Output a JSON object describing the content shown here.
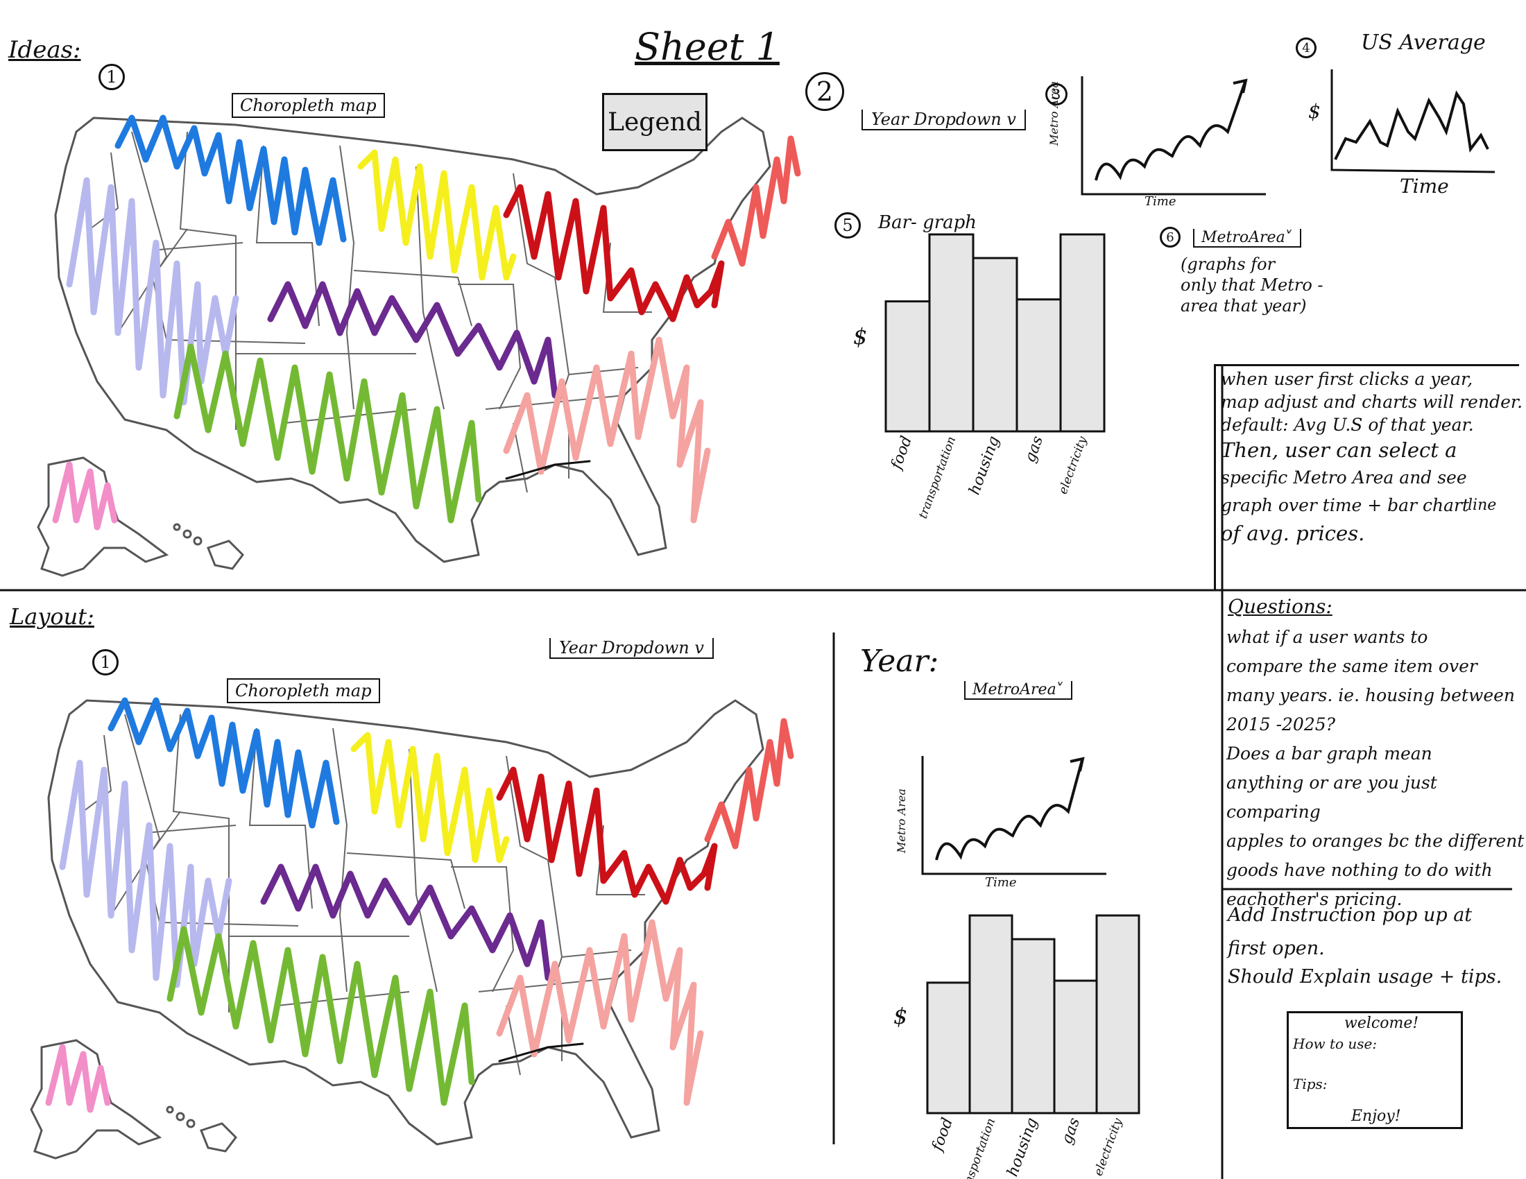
{
  "sheet_title": "Sheet 1",
  "ideas": {
    "heading": "Ideas:",
    "num1": "1",
    "map_label": "Choropleth map",
    "legend_label": "Legend",
    "num2": "2",
    "year_dropdown": "Year Dropdown v",
    "num3": "3",
    "line_ylabel": "Metro Area",
    "line_xlabel": "Time",
    "num4": "4",
    "us_avg_title": "US Average",
    "us_avg_ylabel": "$",
    "us_avg_xlabel": "Time",
    "num5": "5",
    "bar_title": "Bar- graph",
    "bar_ylabel": "$",
    "bar_categories": [
      "food",
      "transportation",
      "housing",
      "gas",
      "electricity"
    ],
    "bar_values": [
      0.66,
      1.0,
      0.88,
      0.67,
      1.0
    ],
    "num6": "6",
    "metro_dropdown": "MetroArea˅",
    "metro_note": [
      "(graphs for",
      "only that Metro -",
      "area that year)"
    ],
    "flow_note": [
      "when user first clicks a year,",
      "map adjust and charts will render.",
      "default: Avg U.S of that year.",
      "Then, user can select a",
      "specific Metro Area and see",
      "graph over time + bar chart",
      "of avg. prices."
    ],
    "flow_note_insert": "line"
  },
  "layout": {
    "heading": "Layout:",
    "num1": "1",
    "map_label": "Choropleth map",
    "year_dropdown": "Year Dropdown v",
    "year_label": "Year:",
    "metro_dropdown": "MetroArea˅",
    "line_ylabel": "Metro Area",
    "line_xlabel": "Time",
    "bar_ylabel": "$",
    "bar_categories": [
      "food",
      "transportation",
      "housing",
      "gas",
      "electricity"
    ],
    "bar_values": [
      0.66,
      1.0,
      0.88,
      0.67,
      1.0
    ]
  },
  "questions": {
    "heading": "Questions:",
    "lines": [
      "what if a user wants to",
      "compare the same item over",
      "many years. ie. housing between",
      "2015 -2025?",
      "Does a bar graph mean",
      "anything or are you just comparing",
      "apples to oranges bc the different",
      "goods have nothing to do with",
      "eachother's pricing."
    ],
    "add_lines": [
      "Add Instruction pop up at",
      "first open.",
      "Should Explain usage + tips."
    ],
    "popup": {
      "title": "welcome!",
      "how": "How to use:",
      "tips": "Tips:",
      "enjoy": "Enjoy!"
    }
  },
  "colors": {
    "northwest": "#1f7ae0",
    "west": "#b7b8ee",
    "north_central": "#f5ef1e",
    "central": "#6b2a8f",
    "south": "#74b934",
    "midwest": "#cc1018",
    "southeast": "#f4a3a0",
    "northeast": "#ee5a58",
    "alaska": "#f28ec8",
    "bar_fill": "#e6e6e6"
  }
}
